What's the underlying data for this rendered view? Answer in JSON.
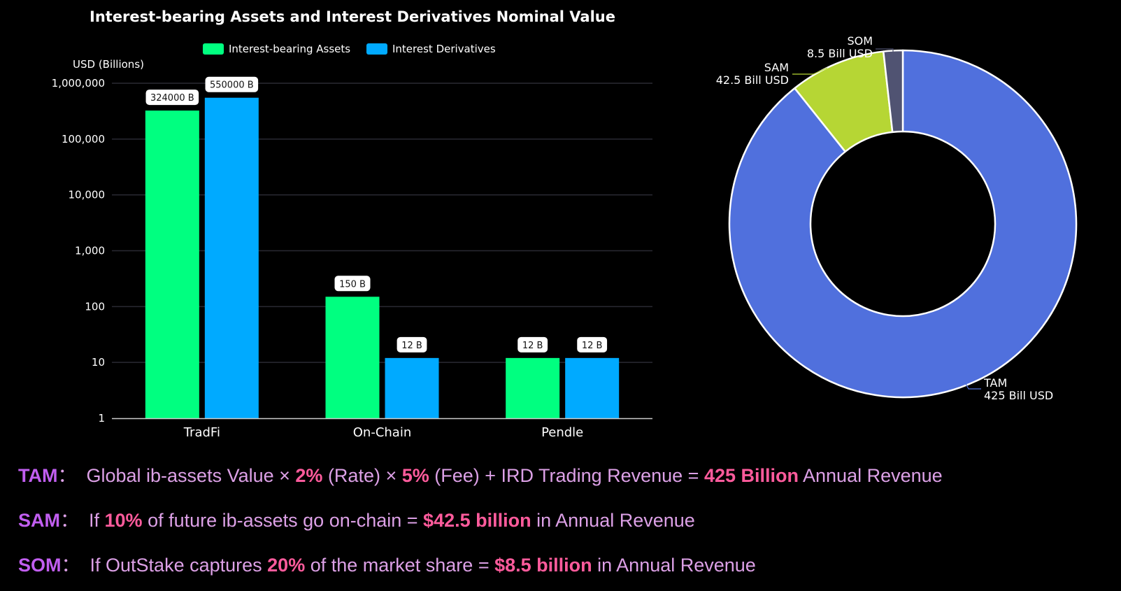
{
  "chart_data": [
    {
      "type": "bar",
      "title": "Interest-bearing Assets and Interest Derivatives Nominal Value",
      "ylabel": "USD (Billions)",
      "xlabel": "",
      "yscale": "log",
      "ylim": [
        1,
        1000000
      ],
      "yticks": [
        {
          "value": 1,
          "label": "1"
        },
        {
          "value": 10,
          "label": "10"
        },
        {
          "value": 100,
          "label": "100"
        },
        {
          "value": 1000,
          "label": "1,000"
        },
        {
          "value": 10000,
          "label": "10,000"
        },
        {
          "value": 100000,
          "label": "100,000"
        },
        {
          "value": 1000000,
          "label": "1,000,000"
        }
      ],
      "grid": true,
      "legend_position": "top-center",
      "categories": [
        "TradFi",
        "On-Chain",
        "Pendle"
      ],
      "series": [
        {
          "name": "Interest-bearing Assets",
          "color": "#00ff80",
          "values": [
            324000,
            150,
            12
          ],
          "labels": [
            "324000 B",
            "150 B",
            "12 B"
          ]
        },
        {
          "name": "Interest Derivatives",
          "color": "#00aaff",
          "values": [
            550000,
            12,
            12
          ],
          "labels": [
            "550000 B",
            "12 B",
            "12 B"
          ]
        }
      ]
    },
    {
      "type": "pie",
      "variant": "donut",
      "title": "",
      "slices": [
        {
          "name": "TAM",
          "value": 425,
          "label_line1": "TAM",
          "label_line2": "425 Bill USD",
          "color": "#5070dd"
        },
        {
          "name": "SAM",
          "value": 42.5,
          "label_line1": "SAM",
          "label_line2": "42.5 Bill USD",
          "color": "#b6d634"
        },
        {
          "name": "SOM",
          "value": 8.5,
          "label_line1": "SOM",
          "label_line2": "8.5 Bill USD",
          "color": "#505372"
        }
      ]
    }
  ],
  "notes": [
    {
      "key": "TAM",
      "sep": "：",
      "parts": [
        {
          "t": "Global ib-assets Value × ",
          "hl": false
        },
        {
          "t": "2%",
          "hl": true
        },
        {
          "t": " (Rate) × ",
          "hl": false
        },
        {
          "t": "5%",
          "hl": true
        },
        {
          "t": " (Fee) + IRD Trading Revenue = ",
          "hl": false
        },
        {
          "t": "425 Billion",
          "hl": true
        },
        {
          "t": " Annual Revenue",
          "hl": false
        }
      ]
    },
    {
      "key": "SAM",
      "sep": "：",
      "parts": [
        {
          "t": "If ",
          "hl": false
        },
        {
          "t": "10%",
          "hl": true
        },
        {
          "t": " of future ib-assets go on-chain = ",
          "hl": false
        },
        {
          "t": "$42.5 billion",
          "hl": true
        },
        {
          "t": " in Annual Revenue",
          "hl": false
        }
      ]
    },
    {
      "key": "SOM",
      "sep": "：",
      "parts": [
        {
          "t": "If OutStake captures ",
          "hl": false
        },
        {
          "t": "20%",
          "hl": true
        },
        {
          "t": " of the market share = ",
          "hl": false
        },
        {
          "t": "$8.5 billion",
          "hl": true
        },
        {
          "t": " in Annual Revenue",
          "hl": false
        }
      ]
    }
  ]
}
